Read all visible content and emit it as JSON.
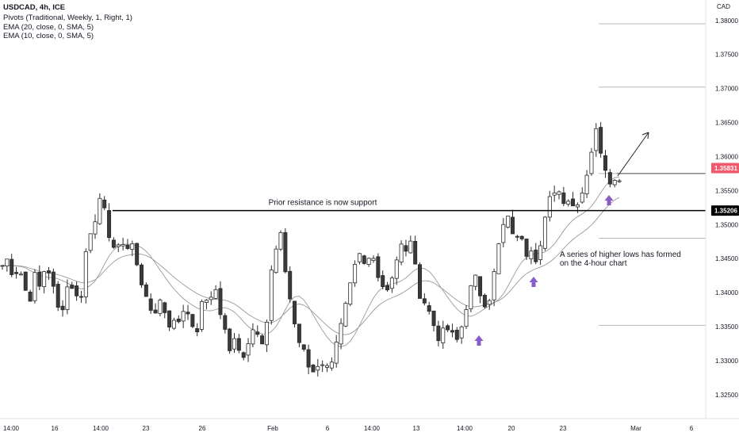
{
  "header": {
    "line1": "USDCAD, 4h, ICE",
    "line2": "Pivots (Traditional, Weekly, 1, Right, 1)",
    "line3": "EMA (20, close, 0, SMA, 5)",
    "line4": "EMA (10, close, 0, SMA, 5)"
  },
  "currency_label": "CAD",
  "colors": {
    "candle_up": "#ffffff",
    "candle_down": "#3a3a3a",
    "candle_outline": "#2a2a2a",
    "ema_line": "#9a9a9a",
    "pivot_line": "#b8b8b8",
    "support_line": "#000000",
    "current_price_bg": "#f0596b",
    "support_price_bg": "#000000",
    "arrow": "#8a5cc7",
    "axis_text": "#131722"
  },
  "chart_data": {
    "type": "candlestick",
    "ylim": [
      1.3215,
      1.383
    ],
    "y_ticks": [
      "1.38000",
      "1.37500",
      "1.37000",
      "1.36500",
      "1.36000",
      "1.35500",
      "1.35000",
      "1.34500",
      "1.34000",
      "1.33500",
      "1.33000",
      "1.32500"
    ],
    "x_ticks": [
      "14:00",
      "16",
      "14:00",
      "23",
      "26",
      "Feb",
      "6",
      "14:00",
      "13",
      "14:00",
      "20",
      "23",
      "Mar",
      "6"
    ],
    "last_price_label": "1.35831",
    "support_price_label": "1.35206",
    "support_level": 1.35206,
    "pivot_levels": [
      1.3795,
      1.3702,
      1.3575,
      1.348,
      1.3352
    ],
    "annotations": {
      "support_text": "Prior resistance is now support",
      "higher_lows_line1": "A series of higher lows has formed",
      "higher_lows_line2": "on the 4-hour chart"
    },
    "segments": [
      [
        1.344,
        1.345,
        1.3425,
        1.344,
        1.3405,
        1.3395
      ],
      [
        1.3395,
        1.3425,
        1.3405,
        1.344,
        1.343,
        1.339,
        1.3365,
        1.34,
        1.342,
        1.3395,
        1.3385,
        1.3455,
        1.3485,
        1.351
      ],
      [
        1.351,
        1.355,
        1.351,
        1.346,
        1.348,
        1.3465,
        1.346,
        1.3485,
        1.345,
        1.341,
        1.34,
        1.338
      ],
      [
        1.338,
        1.336,
        1.3395,
        1.337,
        1.334,
        1.3375,
        1.3355,
        1.338,
        1.336,
        1.334,
        1.3375,
        1.3395,
        1.3385,
        1.3405
      ],
      [
        1.3405,
        1.337,
        1.334,
        1.331,
        1.3335,
        1.33,
        1.332,
        1.334,
        1.3355,
        1.333,
        1.334,
        1.3425,
        1.346,
        1.348
      ],
      [
        1.348,
        1.343,
        1.3385,
        1.3345,
        1.332,
        1.3305,
        1.328,
        1.329,
        1.3305,
        1.3285,
        1.33,
        1.333,
        1.335
      ],
      [
        1.335,
        1.338,
        1.341,
        1.344,
        1.3455,
        1.343,
        1.346,
        1.344,
        1.342,
        1.34,
        1.342,
        1.3445,
        1.347,
        1.3455,
        1.348
      ],
      [
        1.348,
        1.343,
        1.3395,
        1.3385,
        1.3365,
        1.3345,
        1.333,
        1.335,
        1.334,
        1.3325,
        1.3345,
        1.338,
        1.3405
      ],
      [
        1.3405,
        1.342,
        1.3395,
        1.3385,
        1.34,
        1.345,
        1.349,
        1.351,
        1.3495,
        1.3475,
        1.3485
      ],
      [
        1.3485,
        1.346,
        1.347,
        1.345,
        1.3475,
        1.352,
        1.3545,
        1.356,
        1.3535,
        1.3545,
        1.3525,
        1.3535,
        1.3545,
        1.3575,
        1.361
      ],
      [
        1.361,
        1.364,
        1.36,
        1.3575,
        1.356,
        1.357,
        1.3583
      ]
    ],
    "segment_spans": [
      [
        0,
        6
      ],
      [
        6,
        20
      ],
      [
        20,
        32
      ],
      [
        32,
        46
      ],
      [
        46,
        60
      ],
      [
        60,
        73
      ],
      [
        73,
        88
      ],
      [
        88,
        101
      ],
      [
        101,
        112
      ],
      [
        112,
        127
      ],
      [
        127,
        134
      ]
    ]
  }
}
